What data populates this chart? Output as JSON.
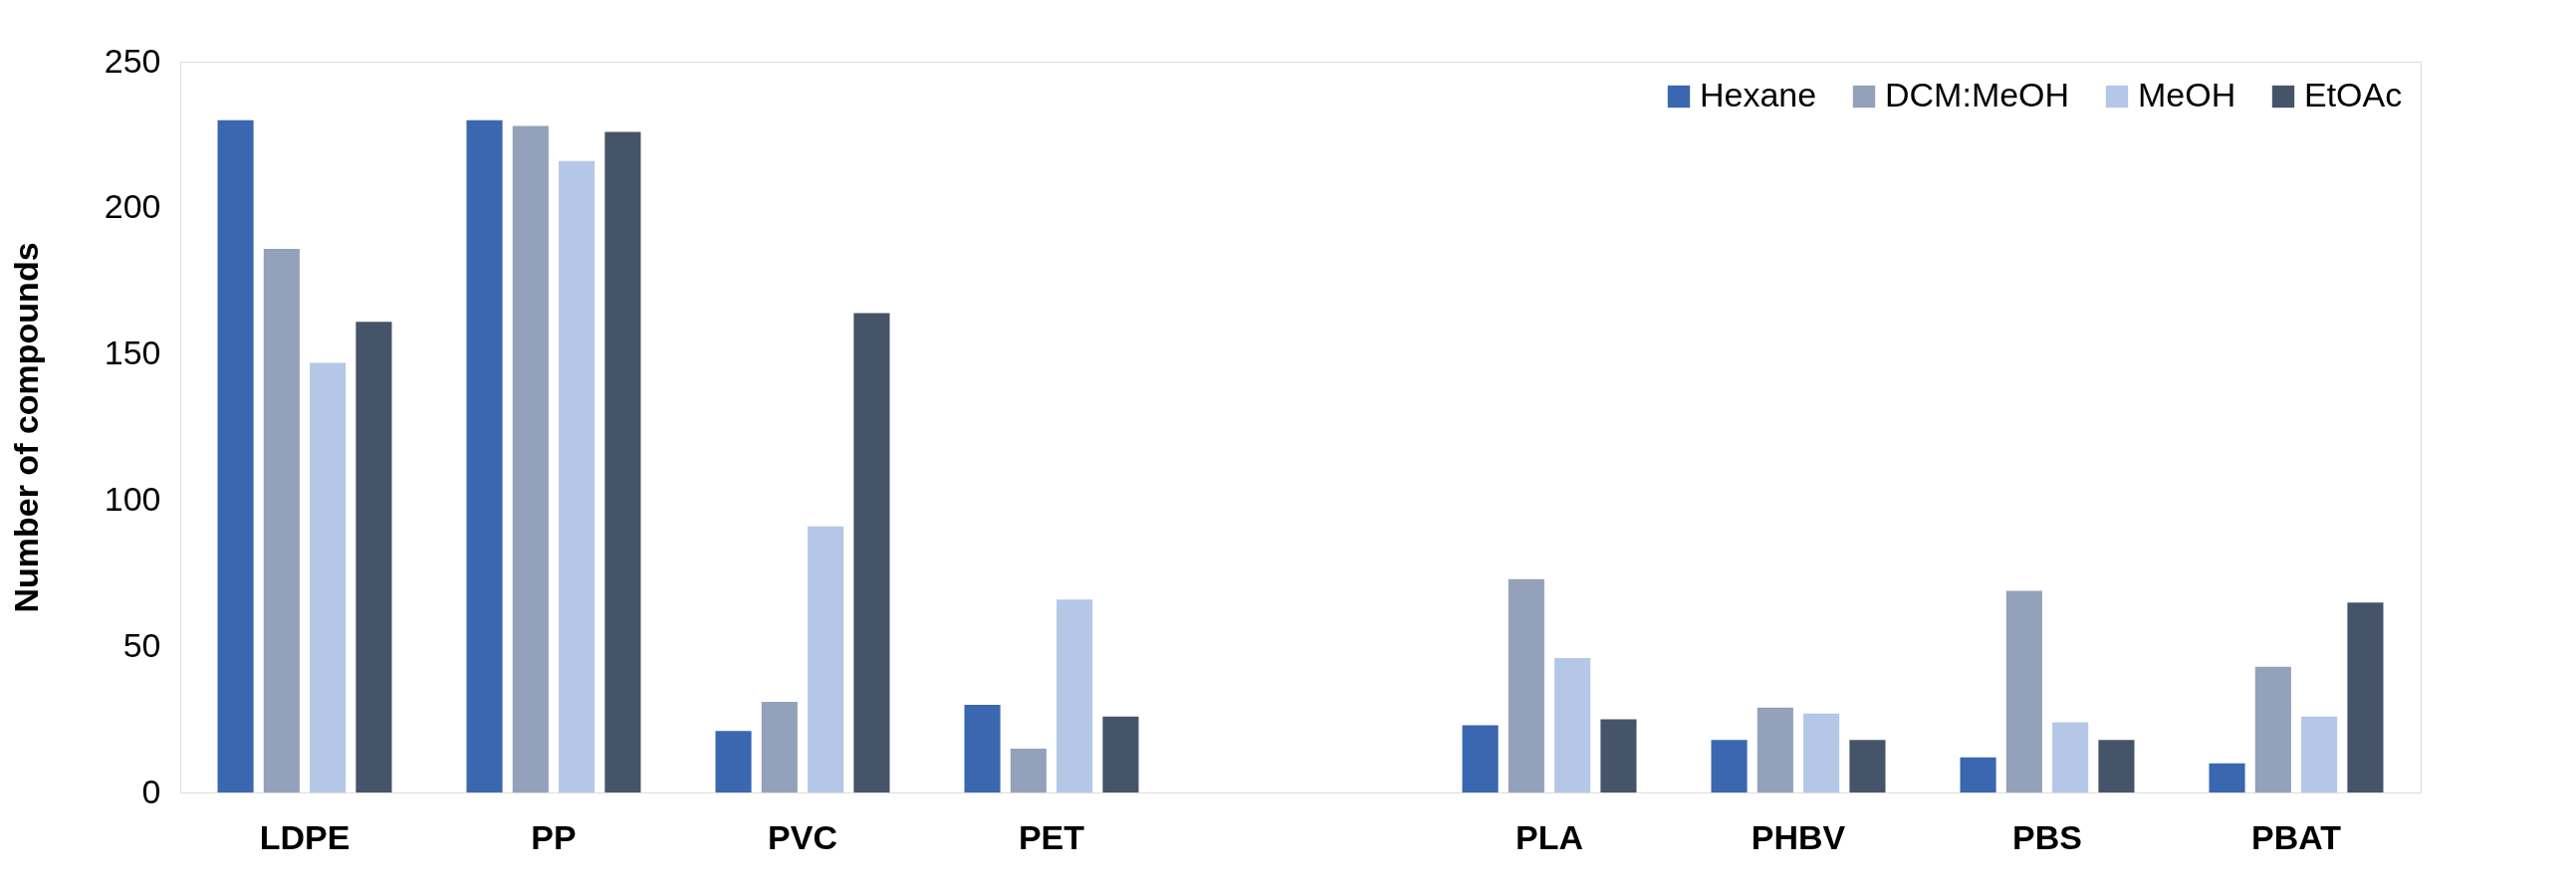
{
  "chart_data": {
    "type": "bar",
    "ylabel": "Number of compounds",
    "categories": [
      "LDPE",
      "PP",
      "PVC",
      "PET",
      null,
      "PLA",
      "PHBV",
      "PBS",
      "PBAT"
    ],
    "series": [
      {
        "name": "Hexane",
        "color": "#3a67b0",
        "values": [
          230,
          230,
          21,
          30,
          null,
          23,
          18,
          12,
          10
        ]
      },
      {
        "name": "DCM:MeOH",
        "color": "#93a1ba",
        "values": [
          186,
          228,
          31,
          15,
          null,
          73,
          29,
          69,
          43
        ]
      },
      {
        "name": "MeOH",
        "color": "#b4c7e7",
        "values": [
          147,
          216,
          91,
          66,
          null,
          46,
          27,
          24,
          26
        ]
      },
      {
        "name": "EtOAc",
        "color": "#465469",
        "values": [
          161,
          226,
          164,
          26,
          null,
          25,
          18,
          18,
          65
        ]
      }
    ],
    "ylim": [
      0,
      250
    ],
    "yticks": [
      0,
      50,
      100,
      150,
      200,
      250
    ],
    "grid": false,
    "legend": "top right"
  }
}
